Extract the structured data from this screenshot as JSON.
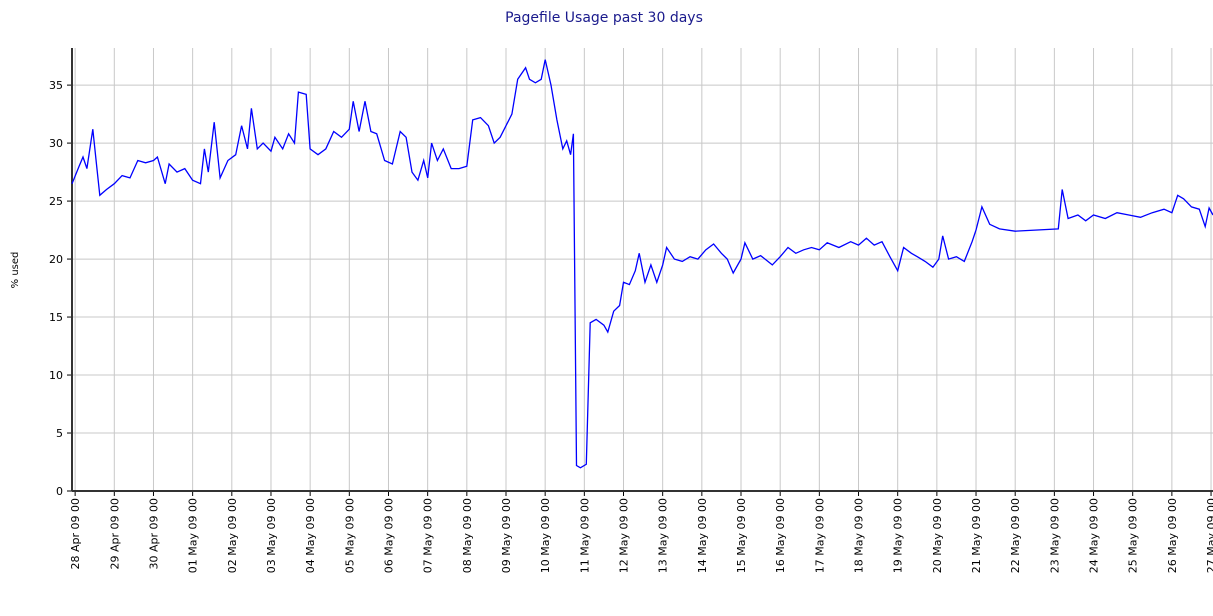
{
  "chart_data": {
    "type": "line",
    "title": "Pagefile Usage past 30 days",
    "y_label": "% used",
    "grid": true,
    "xlim": [
      -0.08,
      29.05
    ],
    "xticks": [
      {
        "value": 0,
        "label": "28 Apr 09 00"
      },
      {
        "value": 1,
        "label": "29 Apr 09 00"
      },
      {
        "value": 2,
        "label": "30 Apr 09 00"
      },
      {
        "value": 3,
        "label": "01 May 09 00"
      },
      {
        "value": 4,
        "label": "02 May 09 00"
      },
      {
        "value": 5,
        "label": "03 May 09 00"
      },
      {
        "value": 6,
        "label": "04 May 09 00"
      },
      {
        "value": 7,
        "label": "05 May 09 00"
      },
      {
        "value": 8,
        "label": "06 May 09 00"
      },
      {
        "value": 9,
        "label": "07 May 09 00"
      },
      {
        "value": 10,
        "label": "08 May 09 00"
      },
      {
        "value": 11,
        "label": "09 May 09 00"
      },
      {
        "value": 12,
        "label": "10 May 09 00"
      },
      {
        "value": 13,
        "label": "11 May 09 00"
      },
      {
        "value": 14,
        "label": "12 May 09 00"
      },
      {
        "value": 15,
        "label": "13 May 09 00"
      },
      {
        "value": 16,
        "label": "14 May 09 00"
      },
      {
        "value": 17,
        "label": "15 May 09 00"
      },
      {
        "value": 18,
        "label": "16 May 09 00"
      },
      {
        "value": 19,
        "label": "17 May 09 00"
      },
      {
        "value": 20,
        "label": "18 May 09 00"
      },
      {
        "value": 21,
        "label": "19 May 09 00"
      },
      {
        "value": 22,
        "label": "20 May 09 00"
      },
      {
        "value": 23,
        "label": "21 May 09 00"
      },
      {
        "value": 24,
        "label": "22 May 09 00"
      },
      {
        "value": 25,
        "label": "23 May 09 00"
      },
      {
        "value": 26,
        "label": "24 May 09 00"
      },
      {
        "value": 27,
        "label": "25 May 09 00"
      },
      {
        "value": 28,
        "label": "26 May 09 00"
      },
      {
        "value": 29,
        "label": "27 May 09 00"
      }
    ],
    "ylim": [
      0,
      38.2
    ],
    "yticks": [
      0,
      5,
      10,
      15,
      20,
      25,
      30,
      35
    ],
    "x": [
      -0.08,
      0.1,
      0.2,
      0.3,
      0.45,
      0.55,
      0.63,
      0.8,
      1.0,
      1.2,
      1.4,
      1.6,
      1.8,
      2.0,
      2.1,
      2.3,
      2.4,
      2.6,
      2.8,
      3.0,
      3.2,
      3.3,
      3.4,
      3.55,
      3.7,
      3.9,
      4.1,
      4.25,
      4.4,
      4.5,
      4.65,
      4.8,
      5.0,
      5.1,
      5.3,
      5.45,
      5.6,
      5.7,
      5.9,
      6.0,
      6.2,
      6.4,
      6.6,
      6.8,
      7.0,
      7.1,
      7.25,
      7.4,
      7.55,
      7.7,
      7.9,
      8.1,
      8.3,
      8.45,
      8.6,
      8.75,
      8.9,
      9.0,
      9.1,
      9.25,
      9.4,
      9.6,
      9.8,
      10.0,
      10.15,
      10.35,
      10.55,
      10.7,
      10.85,
      11.0,
      11.15,
      11.3,
      11.5,
      11.6,
      11.75,
      11.9,
      12.0,
      12.15,
      12.3,
      12.45,
      12.55,
      12.65,
      12.72,
      12.8,
      12.9,
      13.05,
      13.15,
      13.3,
      13.5,
      13.6,
      13.75,
      13.9,
      14.0,
      14.15,
      14.3,
      14.4,
      14.55,
      14.7,
      14.85,
      15.0,
      15.1,
      15.3,
      15.5,
      15.7,
      15.9,
      16.1,
      16.3,
      16.5,
      16.65,
      16.8,
      17.0,
      17.1,
      17.3,
      17.5,
      17.8,
      18.0,
      18.2,
      18.4,
      18.6,
      18.8,
      19.0,
      19.2,
      19.5,
      19.8,
      20.0,
      20.2,
      20.4,
      20.6,
      20.8,
      21.0,
      21.15,
      21.35,
      21.5,
      21.7,
      21.9,
      22.05,
      22.15,
      22.3,
      22.5,
      22.7,
      22.9,
      23.0,
      23.15,
      23.35,
      23.6,
      24.0,
      25.1,
      25.2,
      25.35,
      25.6,
      25.8,
      26.0,
      26.3,
      26.6,
      26.9,
      27.2,
      27.5,
      27.8,
      28.0,
      28.15,
      28.3,
      28.5,
      28.7,
      28.85,
      28.95,
      29.05
    ],
    "series": [
      {
        "name": "Pagefile",
        "color": "#0000ff",
        "values": [
          26.5,
          28,
          28.8,
          27.8,
          31.2,
          28,
          25.5,
          26,
          26.5,
          27.2,
          27,
          28.5,
          28.3,
          28.5,
          28.8,
          26.5,
          28.2,
          27.5,
          27.8,
          26.8,
          26.5,
          29.5,
          27.5,
          31.8,
          27,
          28.5,
          29,
          31.5,
          29.5,
          33,
          29.5,
          30,
          29.3,
          30.5,
          29.5,
          30.8,
          30,
          34.4,
          34.2,
          29.5,
          29,
          29.5,
          31,
          30.5,
          31.2,
          33.6,
          31,
          33.6,
          31,
          30.8,
          28.5,
          28.2,
          31,
          30.5,
          27.5,
          26.8,
          28.5,
          27,
          30,
          28.5,
          29.5,
          27.8,
          27.8,
          28,
          32,
          32.2,
          31.5,
          30,
          30.5,
          31.5,
          32.5,
          35.5,
          36.5,
          35.5,
          35.2,
          35.5,
          37.2,
          35,
          32,
          29.5,
          30.2,
          29,
          30.8,
          2.2,
          2.0,
          2.3,
          14.5,
          14.8,
          14.3,
          13.7,
          15.5,
          16,
          18,
          17.8,
          19,
          20.5,
          18,
          19.5,
          18,
          19.5,
          21,
          20,
          19.8,
          20.2,
          20,
          20.8,
          21.3,
          20.5,
          20,
          18.8,
          20,
          21.4,
          20,
          20.3,
          19.5,
          20.2,
          21,
          20.5,
          20.8,
          21,
          20.8,
          21.4,
          21,
          21.5,
          21.2,
          21.8,
          21.2,
          21.5,
          20.2,
          19,
          21,
          20.5,
          20.2,
          19.8,
          19.3,
          20,
          22,
          20,
          20.2,
          19.8,
          21.5,
          22.5,
          24.5,
          23,
          22.6,
          22.4,
          22.6,
          26,
          23.5,
          23.8,
          23.3,
          23.8,
          23.5,
          24,
          23.8,
          23.6,
          24,
          24.3,
          24,
          25.5,
          25.2,
          24.5,
          24.3,
          22.8,
          24.4,
          23.8
        ]
      }
    ]
  }
}
